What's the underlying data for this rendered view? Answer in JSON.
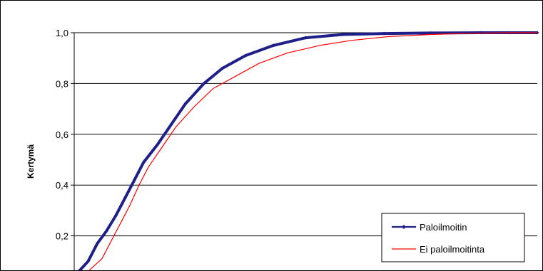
{
  "chart_data": {
    "type": "line",
    "title": "",
    "xlabel": "",
    "ylabel": "Kertymä",
    "ylim": [
      0.0,
      1.0
    ],
    "y_ticks": [
      "0,2",
      "0,4",
      "0,6",
      "0,8",
      "1,0"
    ],
    "y_tick_values": [
      0.2,
      0.4,
      0.6,
      0.8,
      1.0
    ],
    "grid": "horizontal",
    "legend_position": "bottom-right",
    "series": [
      {
        "name": "Paloilmoitin",
        "color": "#1f1f8a",
        "marker": "diamond",
        "x": [
          0.0,
          0.03,
          0.05,
          0.07,
          0.09,
          0.11,
          0.13,
          0.15,
          0.18,
          0.21,
          0.24,
          0.28,
          0.32,
          0.37,
          0.43,
          0.5,
          0.58,
          0.67,
          0.77,
          0.88,
          0.94,
          1.0
        ],
        "values": [
          0.04,
          0.1,
          0.17,
          0.22,
          0.28,
          0.35,
          0.42,
          0.49,
          0.56,
          0.64,
          0.72,
          0.8,
          0.86,
          0.91,
          0.95,
          0.98,
          0.993,
          0.997,
          0.999,
          1.0,
          1.0,
          1.0
        ]
      },
      {
        "name": "Ei paloilmoitinta",
        "color": "#ff0000",
        "marker": "none",
        "x": [
          0.0,
          0.03,
          0.06,
          0.08,
          0.1,
          0.12,
          0.14,
          0.16,
          0.19,
          0.22,
          0.26,
          0.3,
          0.35,
          0.4,
          0.46,
          0.53,
          0.6,
          0.68,
          0.77,
          0.86,
          0.94,
          1.0
        ],
        "values": [
          0.04,
          0.06,
          0.11,
          0.18,
          0.25,
          0.32,
          0.4,
          0.47,
          0.55,
          0.63,
          0.71,
          0.78,
          0.83,
          0.88,
          0.92,
          0.95,
          0.97,
          0.985,
          0.993,
          0.998,
          1.0,
          1.0
        ]
      }
    ]
  }
}
